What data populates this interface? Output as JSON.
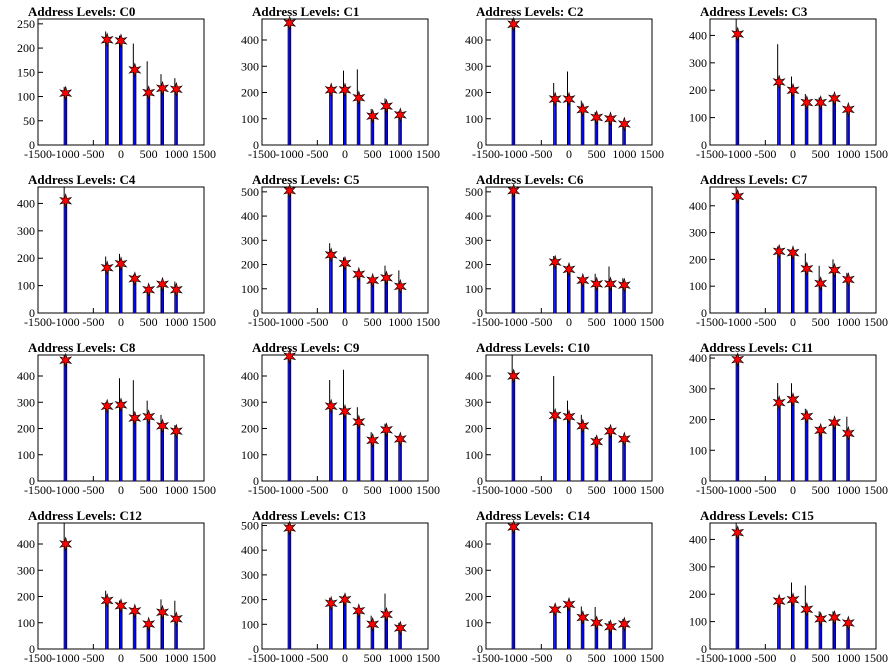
{
  "chart_data": [
    {
      "type": "histogram",
      "title": "Address Levels: C0",
      "xlim": [
        -1500,
        1500
      ],
      "ylim": [
        0,
        260
      ],
      "yticks": [
        0,
        50,
        100,
        150,
        200,
        250
      ],
      "xticks": [
        -1500,
        -1000,
        -500,
        0,
        500,
        1000,
        1500
      ],
      "markers": [
        {
          "x": -1000,
          "y": 107
        },
        {
          "x": -250,
          "y": 217
        },
        {
          "x": 0,
          "y": 215
        },
        {
          "x": 250,
          "y": 155
        },
        {
          "x": 500,
          "y": 108
        },
        {
          "x": 750,
          "y": 117
        },
        {
          "x": 1000,
          "y": 115
        }
      ]
    },
    {
      "type": "histogram",
      "title": "Address Levels: C1",
      "xlim": [
        -1500,
        1500
      ],
      "ylim": [
        0,
        480
      ],
      "yticks": [
        0,
        100,
        200,
        300,
        400
      ],
      "xticks": [
        -1500,
        -1000,
        -500,
        0,
        500,
        1000,
        1500
      ],
      "markers": [
        {
          "x": -1000,
          "y": 465
        },
        {
          "x": -250,
          "y": 210
        },
        {
          "x": 0,
          "y": 210
        },
        {
          "x": 250,
          "y": 180
        },
        {
          "x": 500,
          "y": 110
        },
        {
          "x": 750,
          "y": 148
        },
        {
          "x": 1000,
          "y": 115
        }
      ]
    },
    {
      "type": "histogram",
      "title": "Address Levels: C2",
      "xlim": [
        -1500,
        1500
      ],
      "ylim": [
        0,
        480
      ],
      "yticks": [
        0,
        100,
        200,
        300,
        400
      ],
      "xticks": [
        -1500,
        -1000,
        -500,
        0,
        500,
        1000,
        1500
      ],
      "markers": [
        {
          "x": -1000,
          "y": 460
        },
        {
          "x": -250,
          "y": 175
        },
        {
          "x": 0,
          "y": 175
        },
        {
          "x": 250,
          "y": 135
        },
        {
          "x": 500,
          "y": 105
        },
        {
          "x": 750,
          "y": 100
        },
        {
          "x": 1000,
          "y": 80
        }
      ]
    },
    {
      "type": "histogram",
      "title": "Address Levels: C3",
      "xlim": [
        -1500,
        1500
      ],
      "ylim": [
        0,
        460
      ],
      "yticks": [
        0,
        100,
        200,
        300,
        400
      ],
      "xticks": [
        -1500,
        -1000,
        -500,
        0,
        500,
        1000,
        1500
      ],
      "markers": [
        {
          "x": -1000,
          "y": 405
        },
        {
          "x": -250,
          "y": 230
        },
        {
          "x": 0,
          "y": 200
        },
        {
          "x": 250,
          "y": 155
        },
        {
          "x": 500,
          "y": 155
        },
        {
          "x": 750,
          "y": 170
        },
        {
          "x": 1000,
          "y": 130
        }
      ]
    },
    {
      "type": "histogram",
      "title": "Address Levels: C4",
      "xlim": [
        -1500,
        1500
      ],
      "ylim": [
        0,
        460
      ],
      "yticks": [
        0,
        100,
        200,
        300,
        400
      ],
      "xticks": [
        -1500,
        -1000,
        -500,
        0,
        500,
        1000,
        1500
      ],
      "markers": [
        {
          "x": -1000,
          "y": 410
        },
        {
          "x": -250,
          "y": 165
        },
        {
          "x": 0,
          "y": 180
        },
        {
          "x": 250,
          "y": 125
        },
        {
          "x": 500,
          "y": 85
        },
        {
          "x": 750,
          "y": 105
        },
        {
          "x": 1000,
          "y": 85
        }
      ]
    },
    {
      "type": "histogram",
      "title": "Address Levels: C5",
      "xlim": [
        -1500,
        1500
      ],
      "ylim": [
        0,
        520
      ],
      "yticks": [
        0,
        100,
        200,
        300,
        400,
        500
      ],
      "xticks": [
        -1500,
        -1000,
        -500,
        0,
        500,
        1000,
        1500
      ],
      "markers": [
        {
          "x": -1000,
          "y": 505
        },
        {
          "x": -250,
          "y": 240
        },
        {
          "x": 0,
          "y": 205
        },
        {
          "x": 250,
          "y": 160
        },
        {
          "x": 500,
          "y": 135
        },
        {
          "x": 750,
          "y": 145
        },
        {
          "x": 1000,
          "y": 110
        }
      ]
    },
    {
      "type": "histogram",
      "title": "Address Levels: C6",
      "xlim": [
        -1500,
        1500
      ],
      "ylim": [
        0,
        520
      ],
      "yticks": [
        0,
        100,
        200,
        300,
        400,
        500
      ],
      "xticks": [
        -1500,
        -1000,
        -500,
        0,
        500,
        1000,
        1500
      ],
      "markers": [
        {
          "x": -1000,
          "y": 505
        },
        {
          "x": -250,
          "y": 210
        },
        {
          "x": 0,
          "y": 180
        },
        {
          "x": 250,
          "y": 135
        },
        {
          "x": 500,
          "y": 120
        },
        {
          "x": 750,
          "y": 120
        },
        {
          "x": 1000,
          "y": 115
        }
      ]
    },
    {
      "type": "histogram",
      "title": "Address Levels: C7",
      "xlim": [
        -1500,
        1500
      ],
      "ylim": [
        0,
        470
      ],
      "yticks": [
        0,
        100,
        200,
        300,
        400
      ],
      "xticks": [
        -1500,
        -1000,
        -500,
        0,
        500,
        1000,
        1500
      ],
      "markers": [
        {
          "x": -1000,
          "y": 435
        },
        {
          "x": -250,
          "y": 230
        },
        {
          "x": 0,
          "y": 225
        },
        {
          "x": 250,
          "y": 165
        },
        {
          "x": 500,
          "y": 110
        },
        {
          "x": 750,
          "y": 160
        },
        {
          "x": 1000,
          "y": 125
        }
      ]
    },
    {
      "type": "histogram",
      "title": "Address Levels: C8",
      "xlim": [
        -1500,
        1500
      ],
      "ylim": [
        0,
        480
      ],
      "yticks": [
        0,
        100,
        200,
        300,
        400
      ],
      "xticks": [
        -1500,
        -1000,
        -500,
        0,
        500,
        1000,
        1500
      ],
      "markers": [
        {
          "x": -1000,
          "y": 460
        },
        {
          "x": -250,
          "y": 285
        },
        {
          "x": 0,
          "y": 290
        },
        {
          "x": 250,
          "y": 240
        },
        {
          "x": 500,
          "y": 245
        },
        {
          "x": 750,
          "y": 210
        },
        {
          "x": 1000,
          "y": 190
        }
      ]
    },
    {
      "type": "histogram",
      "title": "Address Levels: C9",
      "xlim": [
        -1500,
        1500
      ],
      "ylim": [
        0,
        480
      ],
      "yticks": [
        0,
        100,
        200,
        300,
        400
      ],
      "xticks": [
        -1500,
        -1000,
        -500,
        0,
        500,
        1000,
        1500
      ],
      "markers": [
        {
          "x": -1000,
          "y": 475
        },
        {
          "x": -250,
          "y": 285
        },
        {
          "x": 0,
          "y": 265
        },
        {
          "x": 250,
          "y": 225
        },
        {
          "x": 500,
          "y": 155
        },
        {
          "x": 750,
          "y": 195
        },
        {
          "x": 1000,
          "y": 160
        }
      ]
    },
    {
      "type": "histogram",
      "title": "Address Levels: C10",
      "xlim": [
        -1500,
        1500
      ],
      "ylim": [
        0,
        480
      ],
      "yticks": [
        0,
        100,
        200,
        300,
        400
      ],
      "xticks": [
        -1500,
        -1000,
        -500,
        0,
        500,
        1000,
        1500
      ],
      "markers": [
        {
          "x": -1000,
          "y": 400
        },
        {
          "x": -250,
          "y": 250
        },
        {
          "x": 0,
          "y": 245
        },
        {
          "x": 250,
          "y": 210
        },
        {
          "x": 500,
          "y": 150
        },
        {
          "x": 750,
          "y": 190
        },
        {
          "x": 1000,
          "y": 160
        }
      ]
    },
    {
      "type": "histogram",
      "title": "Address Levels: C11",
      "xlim": [
        -1500,
        1500
      ],
      "ylim": [
        0,
        410
      ],
      "yticks": [
        0,
        100,
        200,
        300,
        400
      ],
      "xticks": [
        -1500,
        -1000,
        -500,
        0,
        500,
        1000,
        1500
      ],
      "markers": [
        {
          "x": -1000,
          "y": 395
        },
        {
          "x": -250,
          "y": 255
        },
        {
          "x": 0,
          "y": 265
        },
        {
          "x": 250,
          "y": 210
        },
        {
          "x": 500,
          "y": 165
        },
        {
          "x": 750,
          "y": 190
        },
        {
          "x": 1000,
          "y": 155
        }
      ]
    },
    {
      "type": "histogram",
      "title": "Address Levels: C12",
      "xlim": [
        -1500,
        1500
      ],
      "ylim": [
        0,
        480
      ],
      "yticks": [
        0,
        100,
        200,
        300,
        400
      ],
      "xticks": [
        -1500,
        -1000,
        -500,
        0,
        500,
        1000,
        1500
      ],
      "markers": [
        {
          "x": -1000,
          "y": 400
        },
        {
          "x": -250,
          "y": 185
        },
        {
          "x": 0,
          "y": 165
        },
        {
          "x": 250,
          "y": 145
        },
        {
          "x": 500,
          "y": 95
        },
        {
          "x": 750,
          "y": 140
        },
        {
          "x": 1000,
          "y": 115
        }
      ]
    },
    {
      "type": "histogram",
      "title": "Address Levels: C13",
      "xlim": [
        -1500,
        1500
      ],
      "ylim": [
        0,
        510
      ],
      "yticks": [
        0,
        100,
        200,
        300,
        400,
        500
      ],
      "xticks": [
        -1500,
        -1000,
        -500,
        0,
        500,
        1000,
        1500
      ],
      "markers": [
        {
          "x": -1000,
          "y": 490
        },
        {
          "x": -250,
          "y": 185
        },
        {
          "x": 0,
          "y": 200
        },
        {
          "x": 250,
          "y": 155
        },
        {
          "x": 500,
          "y": 100
        },
        {
          "x": 750,
          "y": 140
        },
        {
          "x": 1000,
          "y": 85
        }
      ]
    },
    {
      "type": "histogram",
      "title": "Address Levels: C14",
      "xlim": [
        -1500,
        1500
      ],
      "ylim": [
        0,
        480
      ],
      "yticks": [
        0,
        100,
        200,
        300,
        400
      ],
      "xticks": [
        -1500,
        -1000,
        -500,
        0,
        500,
        1000,
        1500
      ],
      "markers": [
        {
          "x": -1000,
          "y": 465
        },
        {
          "x": -250,
          "y": 150
        },
        {
          "x": 0,
          "y": 170
        },
        {
          "x": 250,
          "y": 120
        },
        {
          "x": 500,
          "y": 100
        },
        {
          "x": 750,
          "y": 85
        },
        {
          "x": 1000,
          "y": 95
        }
      ]
    },
    {
      "type": "histogram",
      "title": "Address Levels: C15",
      "xlim": [
        -1500,
        1500
      ],
      "ylim": [
        0,
        460
      ],
      "yticks": [
        0,
        100,
        200,
        300,
        400
      ],
      "xticks": [
        -1500,
        -1000,
        -500,
        0,
        500,
        1000,
        1500
      ],
      "markers": [
        {
          "x": -1000,
          "y": 425
        },
        {
          "x": -250,
          "y": 175
        },
        {
          "x": 0,
          "y": 180
        },
        {
          "x": 250,
          "y": 145
        },
        {
          "x": 500,
          "y": 110
        },
        {
          "x": 750,
          "y": 115
        },
        {
          "x": 1000,
          "y": 95
        }
      ]
    }
  ]
}
